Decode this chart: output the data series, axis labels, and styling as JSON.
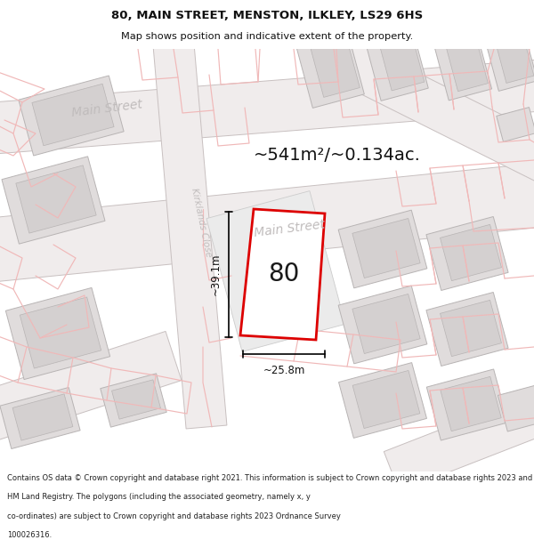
{
  "title_line1": "80, MAIN STREET, MENSTON, ILKLEY, LS29 6HS",
  "title_line2": "Map shows position and indicative extent of the property.",
  "area_text": "~541m²/~0.134ac.",
  "label_number": "80",
  "dim_height": "~39.1m",
  "dim_width": "~25.8m",
  "footer_lines": [
    "Contains OS data © Crown copyright and database right 2021. This information is subject to Crown copyright and database rights 2023 and is reproduced with the permission of",
    "HM Land Registry. The polygons (including the associated geometry, namely x, y",
    "co-ordinates) are subject to Crown copyright and database rights 2023 Ordnance Survey",
    "100026316."
  ],
  "bg_color": "#f9f7f7",
  "road_color": "#f0ecec",
  "road_edge": "#c8c0c0",
  "bld_color": "#e0dcdc",
  "bld_inner_color": "#d4d0d0",
  "bld_edge": "#b8b4b4",
  "highlight_stroke": "#dd0000",
  "faint_color": "#f0b8b8",
  "street_color": "#c0bcbc",
  "dim_color": "#111111",
  "title_color": "#111111",
  "footer_color": "#222222"
}
